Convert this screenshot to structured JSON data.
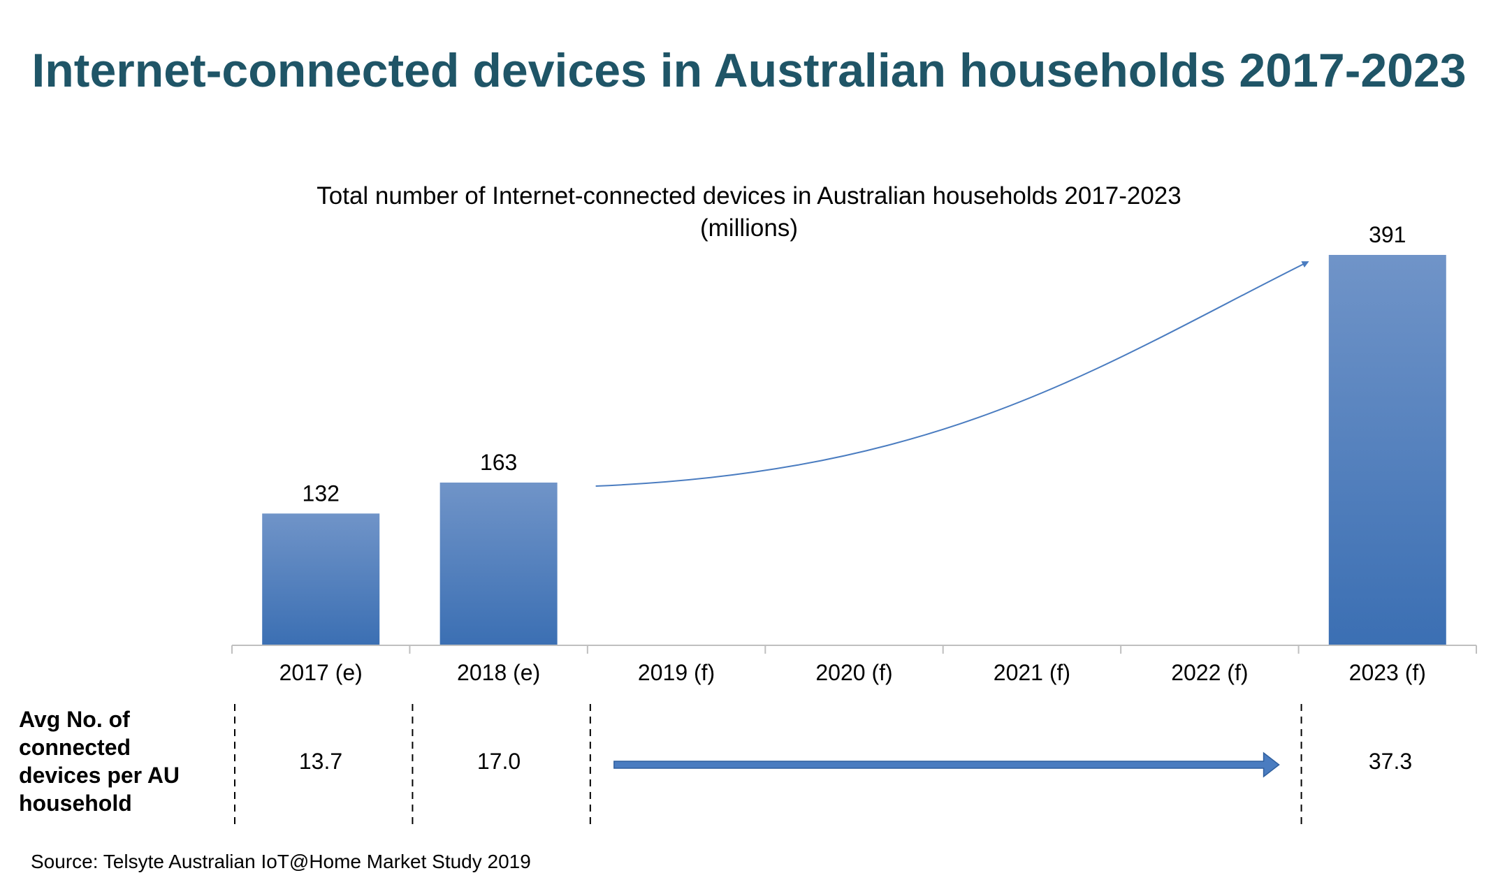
{
  "page": {
    "title": "Internet-connected devices in Australian households 2017-2023",
    "source": "Source: Telsyte Australian IoT@Home Market Study 2019"
  },
  "colors": {
    "title": "#1f5567",
    "bar_top": "#7094c8",
    "bar_bottom": "#3b6fb3",
    "arrow": "#4a7cc0"
  },
  "chart_data": {
    "type": "bar",
    "title_lines": [
      "Total number of Internet-connected devices in Australian households 2017-2023",
      "(millions)"
    ],
    "categories": [
      "2017 (e)",
      "2018 (e)",
      "2019 (f)",
      "2020 (f)",
      "2021 (f)",
      "2022 (f)",
      "2023 (f)"
    ],
    "series": [
      {
        "values": [
          132,
          163,
          null,
          null,
          null,
          null,
          391
        ]
      }
    ],
    "data_labels": [
      "132",
      "163",
      "",
      "",
      "",
      "",
      "391"
    ],
    "ylim": [
      0,
      391
    ],
    "grid": false,
    "legend": "none",
    "annotation": "curved growth arrow from 2018 (e) to 2023 (f)"
  },
  "avg_row": {
    "label_lines": [
      "Avg No. of",
      "connected",
      "devices per AU",
      "household"
    ],
    "values": [
      {
        "category": "2017 (e)",
        "value": "13.7"
      },
      {
        "category": "2018 (e)",
        "value": "17.0"
      },
      {
        "category": "2023 (f)",
        "value": "37.3"
      }
    ]
  }
}
